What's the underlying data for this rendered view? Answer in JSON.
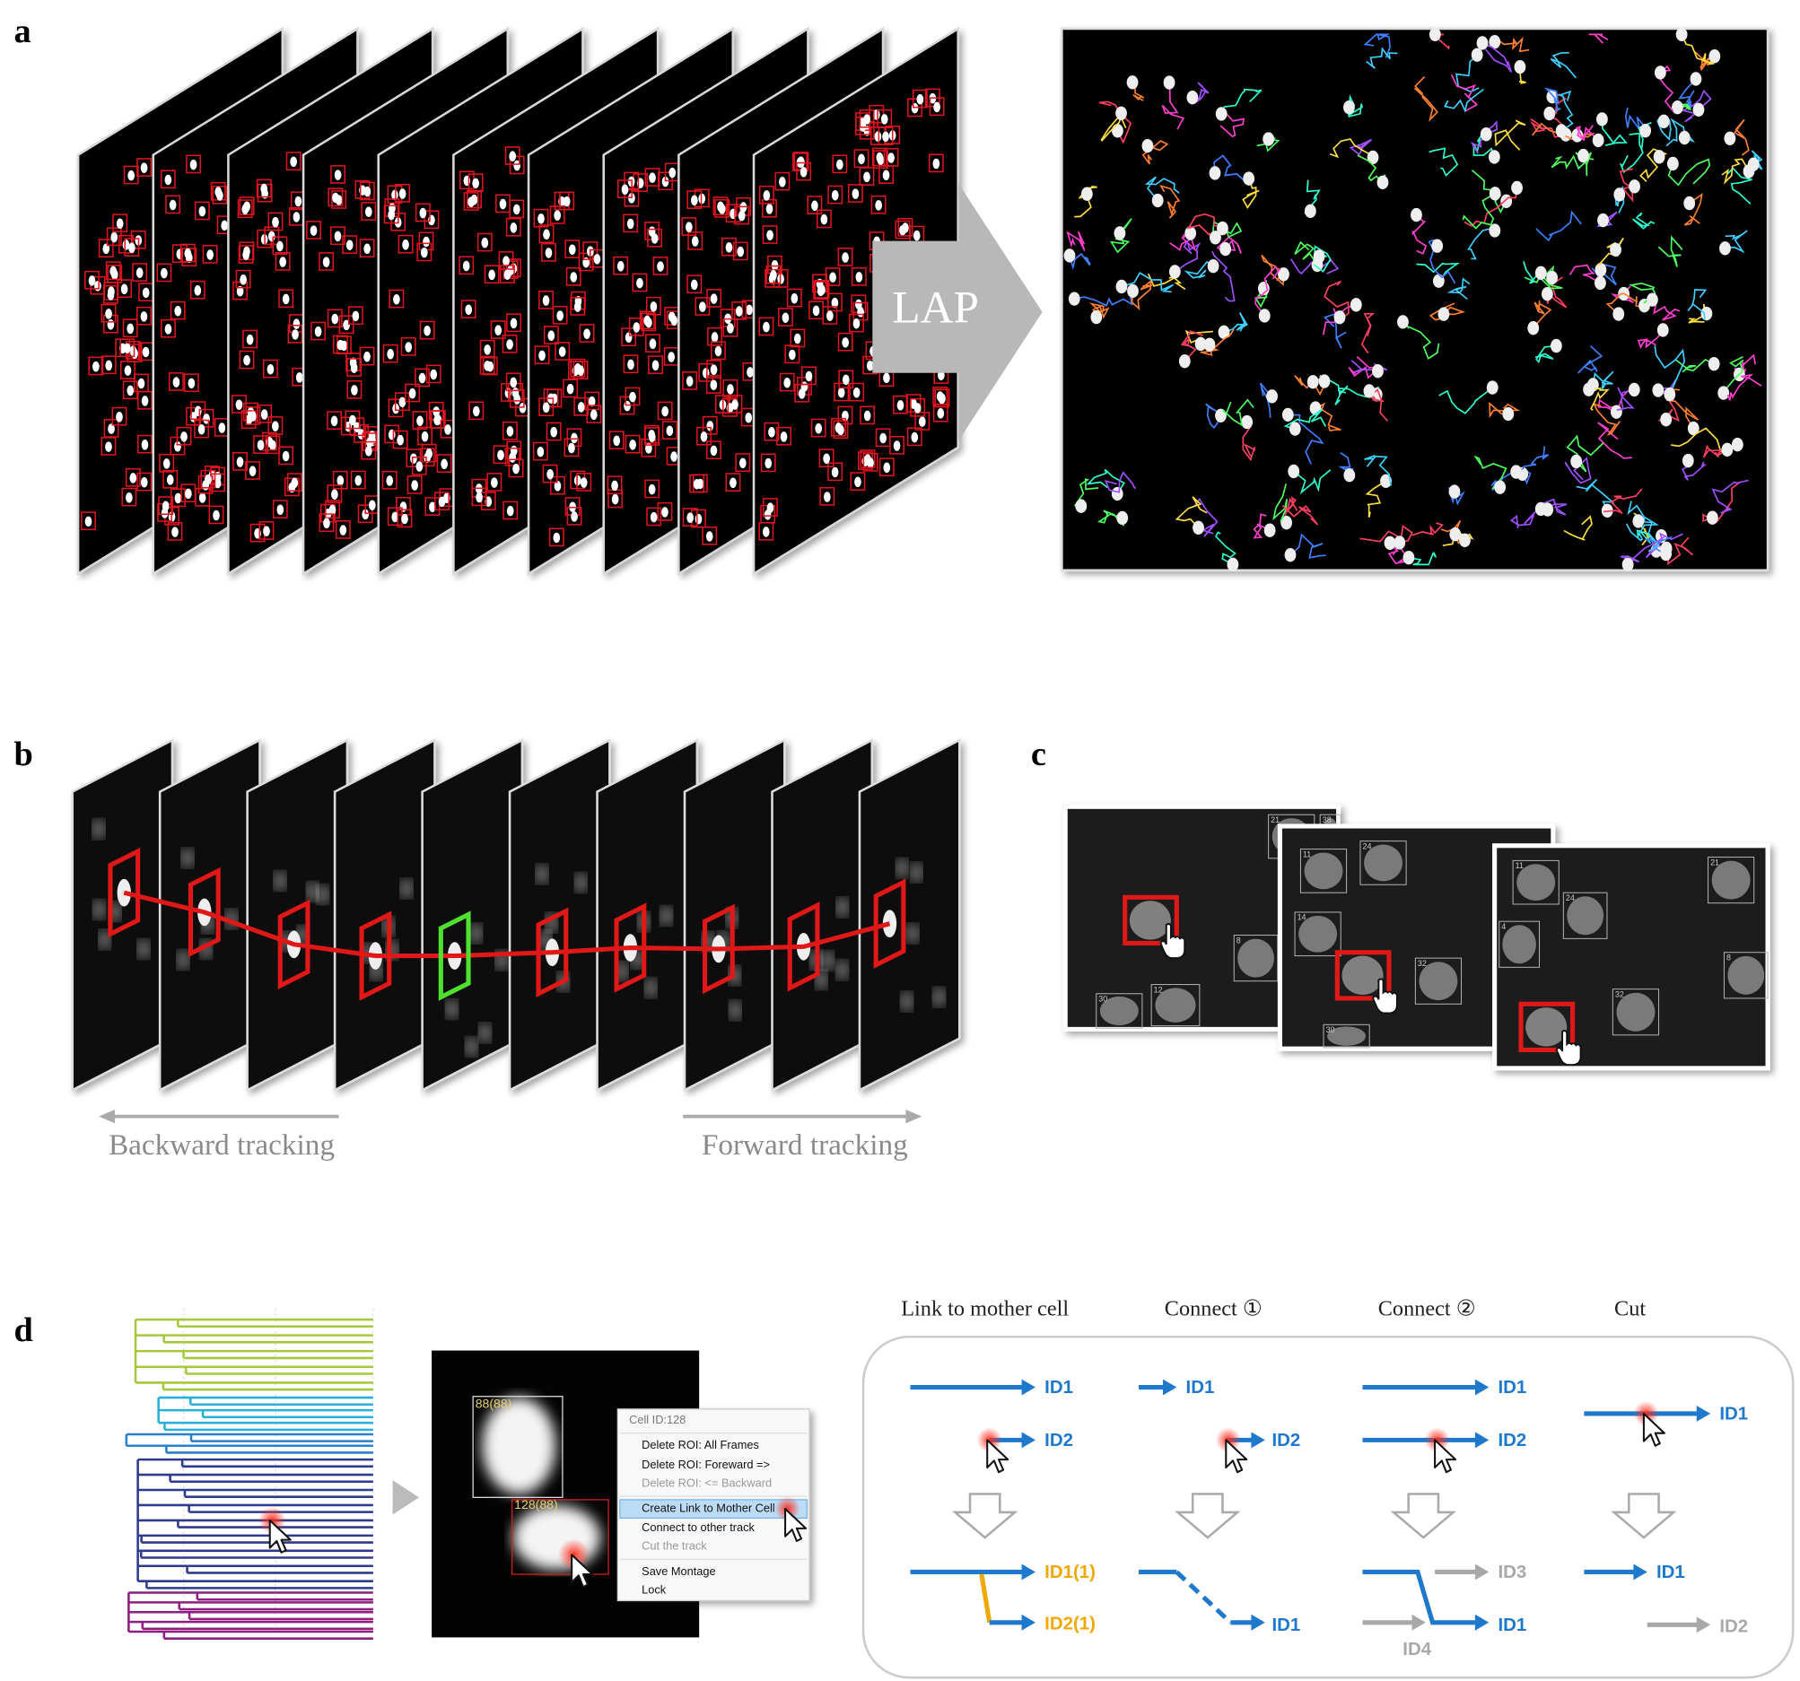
{
  "panel_labels": [
    "a",
    "b",
    "c",
    "d"
  ],
  "panel_a": {
    "arrow_label": "LAP"
  },
  "panel_b": {
    "backward": "Backward tracking",
    "forward": "Forward tracking"
  },
  "panel_c": {
    "windows": [
      {
        "ids": [
          "21",
          "38",
          "8",
          "12",
          "30"
        ]
      },
      {
        "ids": [
          "24",
          "11",
          "14",
          "32",
          "30"
        ]
      },
      {
        "ids": [
          "11",
          "21",
          "24",
          "4",
          "8",
          "32"
        ]
      }
    ]
  },
  "panel_d": {
    "roi_labels": [
      "88(88)",
      "128(88)"
    ],
    "menu": {
      "title": "Cell ID:128",
      "items": [
        "Delete ROI: All Frames",
        "Delete ROI:  Foreward =>",
        "Delete ROI:  <= Backward",
        "Create Link to Mother Cell",
        "Connect to other track",
        "Cut the track",
        "Save Montage",
        "Lock"
      ]
    },
    "columns": [
      {
        "title": "Link to mother cell",
        "labels": [
          "ID1",
          "ID2",
          "ID1(1)",
          "ID2(1)"
        ]
      },
      {
        "title": "Connect ①",
        "labels": [
          "ID1",
          "ID2",
          "ID1"
        ]
      },
      {
        "title": "Connect ②",
        "labels": [
          "ID1",
          "ID2",
          "ID3",
          "ID1",
          "ID4"
        ]
      },
      {
        "title": "Cut",
        "labels": [
          "ID1",
          "ID1",
          "ID2"
        ]
      }
    ]
  }
}
